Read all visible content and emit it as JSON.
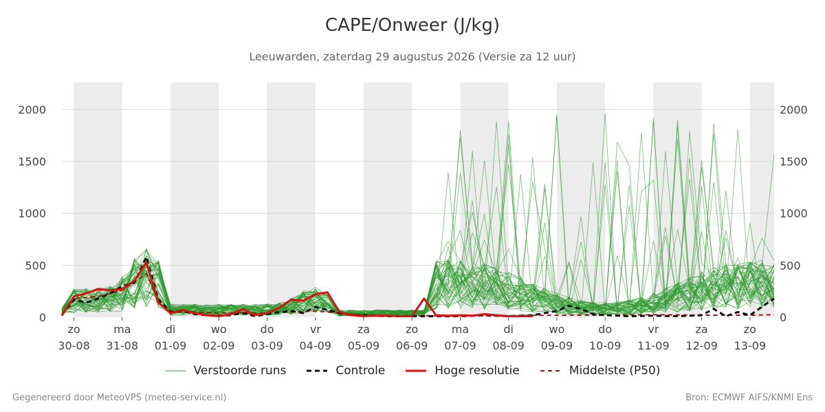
{
  "title": "CAPE/Onweer (J/kg)",
  "subtitle": "Leeuwarden, zaterdag 29 augustus 2026 (Versie za 12 uur)",
  "footer": {
    "left": "Gegenereerd door MeteoVPS (meteo-service.nl)",
    "right": "Bron: ECMWF AIFS/KNMI Ens"
  },
  "legend": [
    {
      "key": "runs",
      "label": "Verstoorde runs",
      "color": "#3a9a3a",
      "style": "thin"
    },
    {
      "key": "control",
      "label": "Controle",
      "color": "#111111",
      "style": "dashed"
    },
    {
      "key": "hires",
      "label": "Hoge resolutie",
      "color": "#dd1111",
      "style": "solid"
    },
    {
      "key": "p50",
      "label": "Middelste (P50)",
      "color": "#aa1111",
      "style": "dashed"
    }
  ],
  "chart_data": {
    "type": "line",
    "title": "CAPE/Onweer (J/kg)",
    "subtitle": "Leeuwarden, zaterdag 29 augustus 2026 (Versie za 12 uur)",
    "x_unit": "days",
    "xlim": [
      -0.25,
      14.5
    ],
    "ylim": [
      0,
      2260
    ],
    "y_ticks": [
      0,
      500,
      1000,
      1500,
      2000
    ],
    "x_ticks": [
      {
        "x": 0,
        "day": "zo",
        "date": "30-08"
      },
      {
        "x": 1,
        "day": "ma",
        "date": "31-08"
      },
      {
        "x": 2,
        "day": "di",
        "date": "01-09"
      },
      {
        "x": 3,
        "day": "wo",
        "date": "02-09"
      },
      {
        "x": 4,
        "day": "do",
        "date": "03-09"
      },
      {
        "x": 5,
        "day": "vr",
        "date": "04-09"
      },
      {
        "x": 6,
        "day": "za",
        "date": "05-09"
      },
      {
        "x": 7,
        "day": "zo",
        "date": "06-09"
      },
      {
        "x": 8,
        "day": "ma",
        "date": "07-09"
      },
      {
        "x": 9,
        "day": "di",
        "date": "08-09"
      },
      {
        "x": 10,
        "day": "wo",
        "date": "09-09"
      },
      {
        "x": 11,
        "day": "do",
        "date": "10-09"
      },
      {
        "x": 12,
        "day": "vr",
        "date": "11-09"
      },
      {
        "x": 13,
        "day": "za",
        "date": "12-09"
      },
      {
        "x": 14,
        "day": "zo",
        "date": "13-09"
      }
    ],
    "shaded_days": [
      [
        0,
        1
      ],
      [
        2,
        3
      ],
      [
        4,
        5
      ],
      [
        6,
        7
      ],
      [
        8,
        9
      ],
      [
        10,
        11
      ],
      [
        12,
        13
      ],
      [
        14,
        14.5
      ]
    ],
    "grid": true,
    "legend_position": "bottom-center",
    "series": [
      {
        "name": "Hoge resolutie",
        "color": "#dd1111",
        "x": [
          -0.25,
          0,
          0.25,
          0.5,
          0.75,
          1,
          1.25,
          1.5,
          1.75,
          2,
          2.25,
          2.5,
          2.75,
          3,
          3.25,
          3.5,
          3.75,
          4,
          4.25,
          4.5,
          4.75,
          5,
          5.25,
          5.5,
          5.75,
          6,
          6.25,
          6.5,
          6.75,
          7,
          7.25,
          7.5,
          7.75,
          8,
          8.25,
          8.5,
          8.75,
          9,
          9.25,
          9.5
        ],
        "values": [
          15,
          200,
          230,
          270,
          260,
          270,
          350,
          530,
          140,
          40,
          70,
          40,
          20,
          10,
          30,
          80,
          20,
          40,
          90,
          170,
          160,
          220,
          240,
          50,
          20,
          10,
          15,
          15,
          10,
          10,
          180,
          20,
          15,
          20,
          15,
          30,
          20,
          10,
          10,
          10
        ]
      },
      {
        "name": "Controle",
        "color": "#111111",
        "x": [
          -0.25,
          0,
          0.25,
          0.5,
          0.75,
          1,
          1.25,
          1.5,
          1.75,
          2,
          2.25,
          2.5,
          2.75,
          3,
          3.25,
          3.5,
          3.75,
          4,
          4.25,
          4.5,
          4.75,
          5,
          5.25,
          5.5,
          5.75,
          6,
          6.5,
          7,
          7.5,
          8,
          8.5,
          9,
          9.5,
          10,
          10.25,
          10.5,
          10.75,
          11,
          11.5,
          12,
          12.5,
          13,
          13.25,
          13.5,
          13.75,
          14,
          14.25,
          14.5
        ],
        "values": [
          20,
          170,
          140,
          180,
          230,
          300,
          330,
          580,
          170,
          50,
          60,
          30,
          20,
          15,
          20,
          40,
          10,
          30,
          50,
          60,
          40,
          100,
          70,
          40,
          20,
          20,
          10,
          10,
          10,
          10,
          20,
          10,
          20,
          60,
          110,
          80,
          30,
          20,
          10,
          15,
          10,
          20,
          80,
          10,
          50,
          20,
          100,
          180
        ]
      },
      {
        "name": "Middelste (P50)",
        "color": "#aa1111",
        "x": [
          -0.25,
          0,
          0.5,
          1,
          1.5,
          1.75,
          2,
          2.5,
          3,
          3.5,
          4,
          4.5,
          5,
          5.5,
          6,
          7,
          8,
          9,
          10,
          11,
          12,
          13,
          14,
          14.5
        ],
        "values": [
          15,
          180,
          200,
          260,
          420,
          160,
          60,
          50,
          40,
          45,
          40,
          50,
          60,
          40,
          20,
          15,
          15,
          15,
          20,
          20,
          25,
          20,
          20,
          25
        ]
      }
    ]
  }
}
